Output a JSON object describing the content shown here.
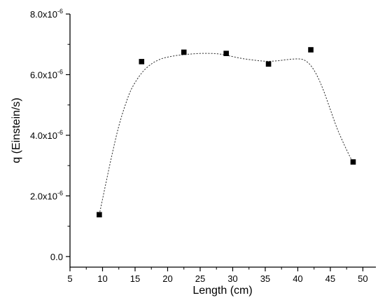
{
  "chart_data": {
    "type": "scatter",
    "xlabel": "Length (cm)",
    "ylabel": "q (Einstein/s)",
    "xlim": [
      5,
      52
    ],
    "ylim": [
      -3.5e-07,
      8e-06
    ],
    "x_ticks": [
      5,
      10,
      15,
      20,
      25,
      30,
      35,
      40,
      45,
      50
    ],
    "x_tick_labels": [
      "5",
      "10",
      "15",
      "20",
      "25",
      "30",
      "35",
      "40",
      "45",
      "50"
    ],
    "y_ticks": [
      0,
      2e-06,
      4e-06,
      6e-06,
      8e-06
    ],
    "y_tick_labels": [
      {
        "mantissa": "0.0",
        "exponent": ""
      },
      {
        "mantissa": "2.0x10",
        "exponent": "-6"
      },
      {
        "mantissa": "4.0x10",
        "exponent": "-6"
      },
      {
        "mantissa": "6.0x10",
        "exponent": "-6"
      },
      {
        "mantissa": "8.0x10",
        "exponent": "-6"
      }
    ],
    "grid": false,
    "legend": "none",
    "series": [
      {
        "marker": "square",
        "color": "#000000",
        "x": [
          9.5,
          16.0,
          22.5,
          29.0,
          35.5,
          42.0,
          48.5
        ],
        "y": [
          1.38e-06,
          6.43e-06,
          6.74e-06,
          6.7e-06,
          6.35e-06,
          6.82e-06,
          3.12e-06
        ]
      }
    ],
    "fit_curve": {
      "style": "dashed",
      "color": "#333333",
      "x": [
        9.5,
        10.5,
        11.5,
        12.5,
        13.5,
        14.5,
        16.0,
        17.5,
        19.0,
        20.5,
        22.0,
        23.5,
        25.0,
        26.5,
        28.0,
        29.5,
        31.0,
        32.5,
        34.0,
        35.5,
        37.0,
        38.5,
        40.0,
        41.0,
        42.0,
        43.0,
        44.0,
        45.0,
        46.0,
        47.0,
        48.0,
        48.5
      ],
      "y": [
        1.38e-06,
        2.4e-06,
        3.4e-06,
        4.3e-06,
        5e-06,
        5.55e-06,
        6.05e-06,
        6.35e-06,
        6.52e-06,
        6.6e-06,
        6.65e-06,
        6.68e-06,
        6.7e-06,
        6.7e-06,
        6.68e-06,
        6.62e-06,
        6.55e-06,
        6.5e-06,
        6.46e-06,
        6.44e-06,
        6.46e-06,
        6.5e-06,
        6.52e-06,
        6.48e-06,
        6.3e-06,
        5.95e-06,
        5.45e-06,
        4.85e-06,
        4.25e-06,
        3.75e-06,
        3.3e-06,
        3.12e-06
      ]
    }
  }
}
